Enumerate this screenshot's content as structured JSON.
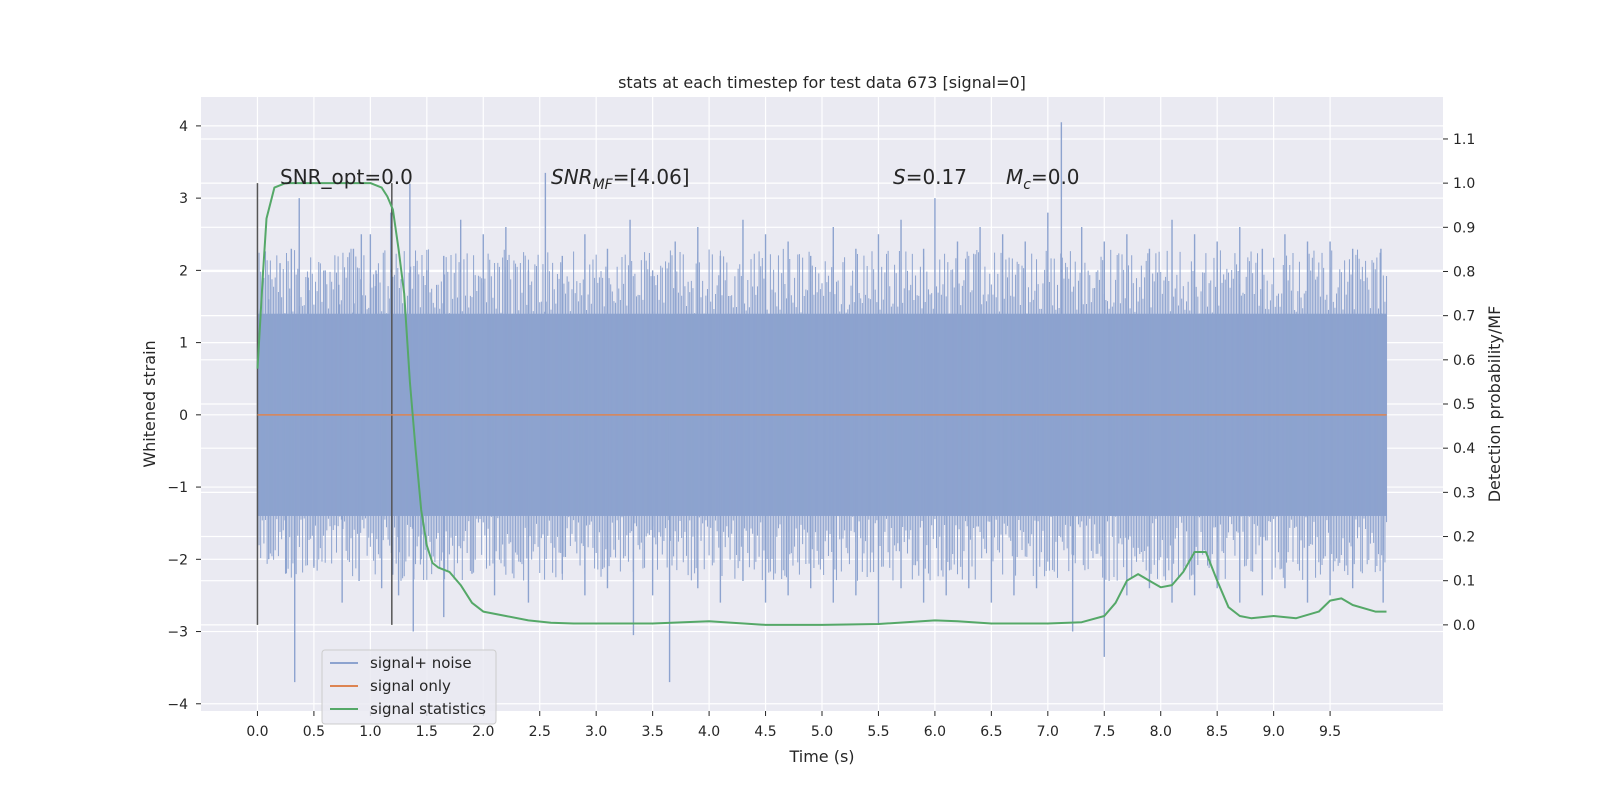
{
  "chart_data": {
    "type": "line",
    "title": "stats at each timestep for test data 673 [signal=0]",
    "xlabel": "Time (s)",
    "ylabel": "Whitened strain",
    "ylabel_right": "Detection probability/MF",
    "xlim": [
      -0.5,
      10.5
    ],
    "ylim": [
      -4.1,
      4.4
    ],
    "ylim_right": [
      -0.195,
      1.195
    ],
    "x_ticks": [
      "0.0",
      "0.5",
      "1.0",
      "1.5",
      "2.0",
      "2.5",
      "3.0",
      "3.5",
      "4.0",
      "4.5",
      "5.0",
      "5.5",
      "6.0",
      "6.5",
      "7.0",
      "7.5",
      "8.0",
      "8.5",
      "9.0",
      "9.5"
    ],
    "y_ticks": [
      "4",
      "3",
      "2",
      "1",
      "0",
      "−1",
      "−2",
      "−3",
      "−4"
    ],
    "y_ticks_right": [
      "1.1",
      "1.0",
      "0.9",
      "0.8",
      "0.7",
      "0.6",
      "0.5",
      "0.4",
      "0.3",
      "0.2",
      "0.1",
      "0.0"
    ],
    "grid": true,
    "legend_position": "lower-left",
    "annotations": {
      "snr_opt": "SNR_opt=0.0",
      "snr_mf_main": "SNR",
      "snr_mf_sub": "MF",
      "snr_mf_value": "=[4.06]",
      "s_symbol": "S",
      "s_value": "=0.17",
      "mc_main": "M",
      "mc_sub": "c",
      "mc_value": "=0.0"
    },
    "markers_x": [
      0.0,
      1.19
    ],
    "series": [
      {
        "name": "signal+ noise",
        "color": "#8da3cf",
        "x_range": [
          0.0,
          10.0
        ],
        "band_y": [
          -1.4,
          1.4
        ],
        "spikes_up": [
          [
            0.1,
            1.6
          ],
          [
            0.2,
            2.1
          ],
          [
            0.3,
            2.3
          ],
          [
            0.37,
            3.0
          ],
          [
            0.45,
            1.9
          ],
          [
            0.6,
            2.0
          ],
          [
            0.72,
            1.8
          ],
          [
            0.85,
            2.3
          ],
          [
            0.92,
            2.5
          ],
          [
            1.0,
            2.5
          ],
          [
            1.05,
            2.0
          ],
          [
            1.18,
            2.8
          ],
          [
            1.35,
            3.2
          ],
          [
            1.5,
            2.0
          ],
          [
            1.65,
            2.2
          ],
          [
            1.8,
            2.7
          ],
          [
            2.0,
            2.5
          ],
          [
            2.2,
            2.6
          ],
          [
            2.4,
            2.0
          ],
          [
            2.55,
            3.35
          ],
          [
            2.7,
            2.2
          ],
          [
            2.9,
            2.5
          ],
          [
            3.1,
            2.3
          ],
          [
            3.3,
            2.7
          ],
          [
            3.5,
            2.0
          ],
          [
            3.7,
            2.4
          ],
          [
            3.9,
            2.6
          ],
          [
            4.1,
            2.2
          ],
          [
            4.3,
            2.7
          ],
          [
            4.5,
            2.5
          ],
          [
            4.7,
            2.4
          ],
          [
            4.9,
            2.2
          ],
          [
            5.1,
            2.6
          ],
          [
            5.3,
            2.3
          ],
          [
            5.5,
            2.5
          ],
          [
            5.7,
            2.7
          ],
          [
            5.9,
            2.3
          ],
          [
            6.0,
            3.0
          ],
          [
            6.2,
            2.4
          ],
          [
            6.4,
            2.6
          ],
          [
            6.6,
            2.5
          ],
          [
            6.8,
            2.4
          ],
          [
            7.0,
            2.8
          ],
          [
            7.12,
            4.05
          ],
          [
            7.3,
            2.6
          ],
          [
            7.5,
            2.4
          ],
          [
            7.7,
            2.5
          ],
          [
            7.9,
            2.3
          ],
          [
            8.1,
            2.7
          ],
          [
            8.3,
            2.5
          ],
          [
            8.5,
            2.4
          ],
          [
            8.7,
            2.6
          ],
          [
            8.9,
            2.3
          ],
          [
            9.1,
            2.5
          ],
          [
            9.3,
            2.4
          ],
          [
            9.5,
            2.4
          ],
          [
            9.7,
            2.3
          ],
          [
            9.95,
            2.3
          ]
        ],
        "spikes_down": [
          [
            0.1,
            -2.0
          ],
          [
            0.25,
            -2.2
          ],
          [
            0.33,
            -3.7
          ],
          [
            0.5,
            -2.1
          ],
          [
            0.75,
            -2.6
          ],
          [
            0.9,
            -2.3
          ],
          [
            1.1,
            -2.4
          ],
          [
            1.25,
            -2.5
          ],
          [
            1.38,
            -3.0
          ],
          [
            1.45,
            -2.0
          ],
          [
            1.65,
            -2.8
          ],
          [
            1.9,
            -2.2
          ],
          [
            2.1,
            -2.5
          ],
          [
            2.4,
            -2.6
          ],
          [
            2.7,
            -2.2
          ],
          [
            2.9,
            -2.5
          ],
          [
            3.1,
            -2.4
          ],
          [
            3.33,
            -3.05
          ],
          [
            3.5,
            -2.5
          ],
          [
            3.65,
            -3.7
          ],
          [
            3.9,
            -2.4
          ],
          [
            4.1,
            -2.6
          ],
          [
            4.3,
            -2.3
          ],
          [
            4.5,
            -2.6
          ],
          [
            4.7,
            -2.5
          ],
          [
            4.9,
            -2.4
          ],
          [
            5.1,
            -2.6
          ],
          [
            5.3,
            -2.5
          ],
          [
            5.5,
            -2.9
          ],
          [
            5.7,
            -2.4
          ],
          [
            5.9,
            -2.6
          ],
          [
            6.1,
            -2.5
          ],
          [
            6.3,
            -2.4
          ],
          [
            6.5,
            -2.6
          ],
          [
            6.7,
            -2.5
          ],
          [
            6.9,
            -2.4
          ],
          [
            7.22,
            -3.0
          ],
          [
            7.5,
            -3.35
          ],
          [
            7.7,
            -2.5
          ],
          [
            7.9,
            -2.4
          ],
          [
            8.1,
            -2.6
          ],
          [
            8.3,
            -2.5
          ],
          [
            8.5,
            -2.4
          ],
          [
            8.7,
            -2.6
          ],
          [
            8.9,
            -2.5
          ],
          [
            9.1,
            -2.4
          ],
          [
            9.3,
            -2.6
          ],
          [
            9.5,
            -2.5
          ],
          [
            9.7,
            -2.4
          ],
          [
            9.97,
            -2.6
          ]
        ]
      },
      {
        "name": "signal only",
        "color": "#dd8452",
        "x": [
          0.0,
          10.0
        ],
        "y": [
          0.0,
          0.0
        ]
      },
      {
        "name": "signal statistics",
        "color": "#55a868",
        "axis": "right",
        "x": [
          0.0,
          0.05,
          0.08,
          0.15,
          0.25,
          0.4,
          0.6,
          0.8,
          1.0,
          1.1,
          1.15,
          1.2,
          1.25,
          1.3,
          1.35,
          1.4,
          1.45,
          1.5,
          1.55,
          1.6,
          1.7,
          1.8,
          1.9,
          2.0,
          2.2,
          2.4,
          2.6,
          2.8,
          3.0,
          3.5,
          4.0,
          4.5,
          5.0,
          5.5,
          6.0,
          6.2,
          6.5,
          7.0,
          7.3,
          7.5,
          7.6,
          7.7,
          7.8,
          7.9,
          8.0,
          8.1,
          8.2,
          8.3,
          8.4,
          8.5,
          8.6,
          8.7,
          8.8,
          9.0,
          9.2,
          9.4,
          9.5,
          9.6,
          9.7,
          9.9,
          10.0
        ],
        "y": [
          0.58,
          0.8,
          0.92,
          0.99,
          1.0,
          1.0,
          1.0,
          1.0,
          1.0,
          0.99,
          0.97,
          0.94,
          0.85,
          0.75,
          0.55,
          0.4,
          0.26,
          0.18,
          0.14,
          0.13,
          0.12,
          0.09,
          0.05,
          0.03,
          0.02,
          0.01,
          0.005,
          0.003,
          0.003,
          0.003,
          0.008,
          0.0,
          0.0,
          0.002,
          0.01,
          0.008,
          0.003,
          0.003,
          0.006,
          0.02,
          0.05,
          0.1,
          0.115,
          0.1,
          0.085,
          0.09,
          0.12,
          0.165,
          0.165,
          0.1,
          0.04,
          0.02,
          0.015,
          0.02,
          0.015,
          0.03,
          0.055,
          0.06,
          0.045,
          0.03,
          0.03
        ]
      }
    ]
  }
}
